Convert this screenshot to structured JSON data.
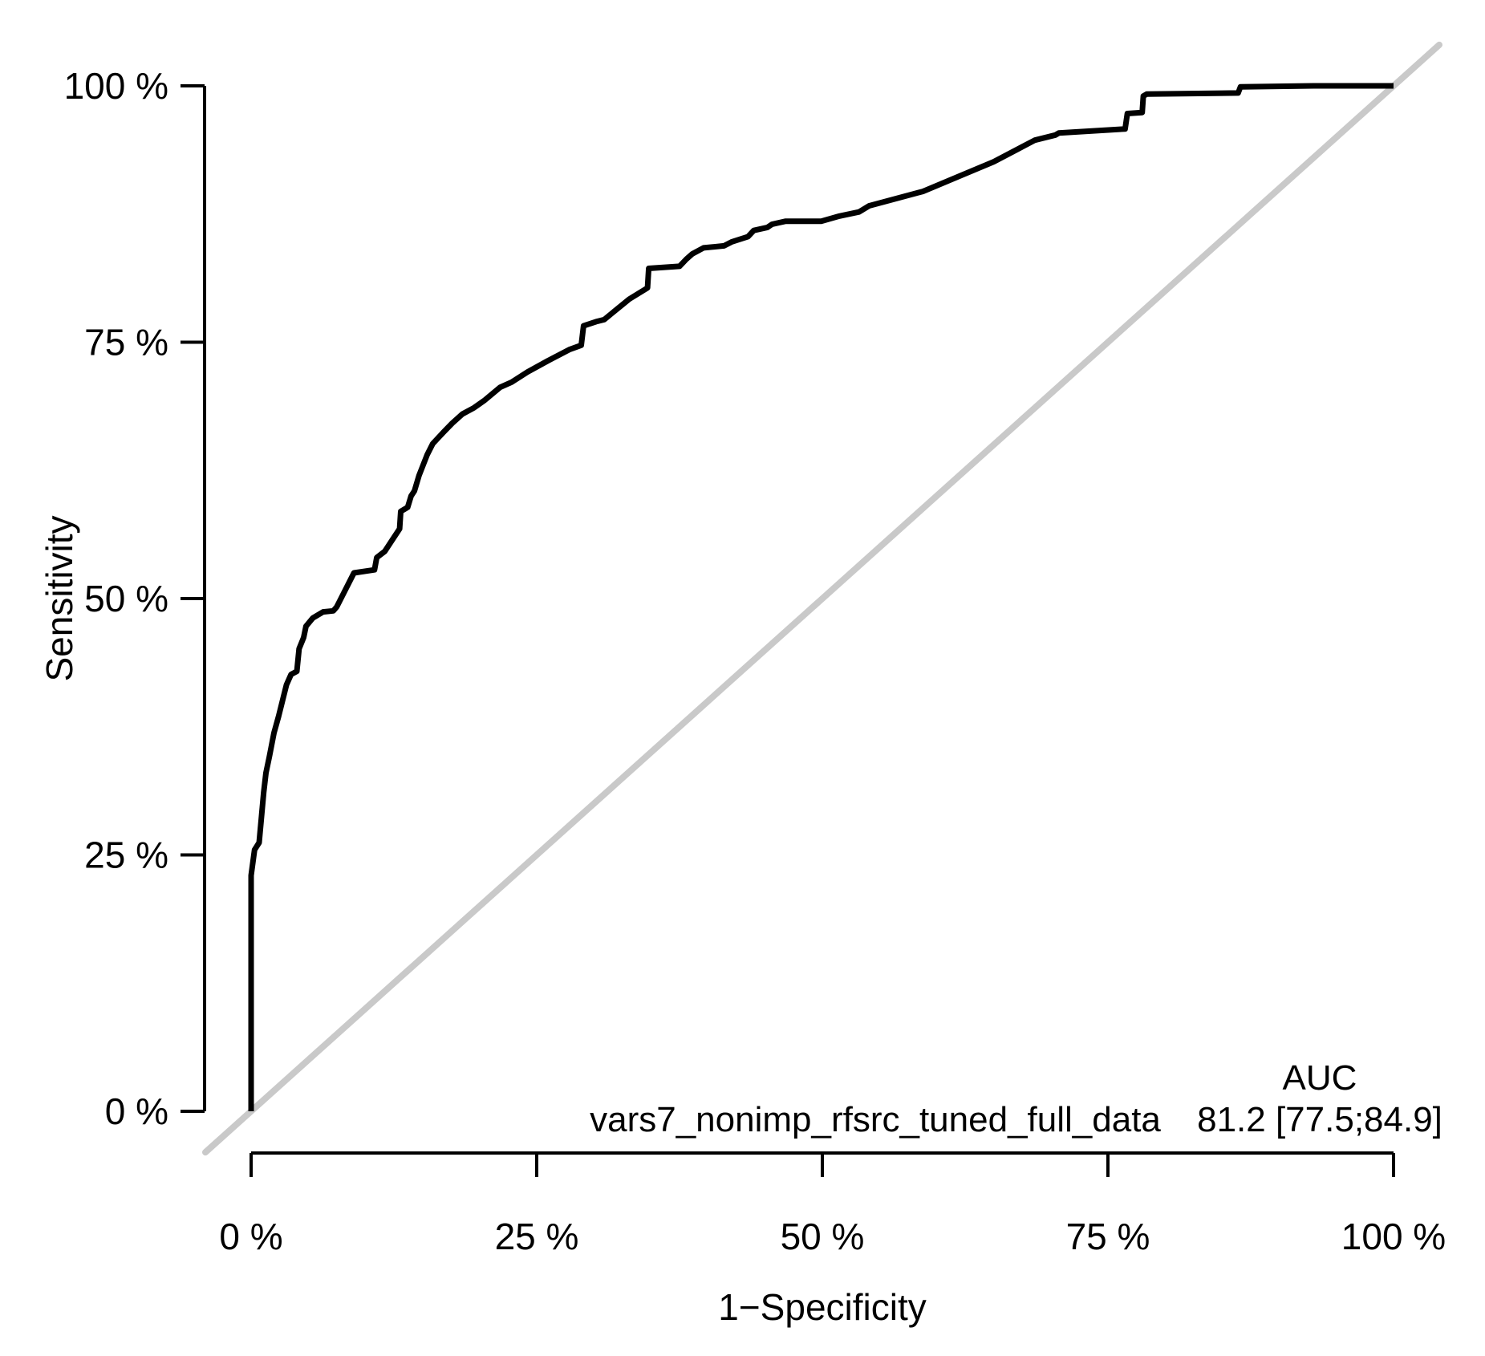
{
  "chart_data": {
    "type": "line",
    "title": "",
    "xlabel": "1−Specificity",
    "ylabel": "Sensitivity",
    "xlim": [
      0,
      100
    ],
    "ylim": [
      0,
      100
    ],
    "grid": false,
    "legend_position": "none",
    "x_tick_labels": [
      "0 %",
      "25 %",
      "50 %",
      "75 %",
      "100 %"
    ],
    "x_tick_values": [
      0,
      25,
      50,
      75,
      100
    ],
    "y_tick_labels": [
      "0 %",
      "25 %",
      "50 %",
      "75 %",
      "100 %"
    ],
    "y_tick_values": [
      0,
      25,
      50,
      75,
      100
    ],
    "annotation": {
      "model_label": "vars7_nonimp_rfsrc_tuned_full_data",
      "auc_header": "AUC",
      "auc_value_text": "81.2 [77.5;84.9]",
      "auc": 81.2,
      "auc_ci_low": 77.5,
      "auc_ci_high": 84.9
    },
    "series": [
      {
        "name": "reference_diagonal",
        "color": "#c9c9c9",
        "stroke_width": 8,
        "points": [
          [
            -4,
            -4
          ],
          [
            104,
            104
          ]
        ]
      },
      {
        "name": "roc_curve",
        "color": "#000000",
        "stroke_width": 7,
        "points": [
          [
            0,
            0
          ],
          [
            0,
            23
          ],
          [
            0.3,
            25.5
          ],
          [
            0.7,
            26.2
          ],
          [
            1.1,
            31.1
          ],
          [
            1.3,
            33
          ],
          [
            1.6,
            34.6
          ],
          [
            2,
            36.9
          ],
          [
            2.4,
            38.5
          ],
          [
            3.1,
            41.6
          ],
          [
            3.5,
            42.6
          ],
          [
            4,
            42.9
          ],
          [
            4.2,
            45.1
          ],
          [
            4.6,
            46.2
          ],
          [
            4.8,
            47.3
          ],
          [
            5.4,
            48.1
          ],
          [
            6.3,
            48.7
          ],
          [
            7.2,
            48.8
          ],
          [
            7.5,
            49.2
          ],
          [
            9,
            52.5
          ],
          [
            10.8,
            52.8
          ],
          [
            11,
            54
          ],
          [
            11.7,
            54.6
          ],
          [
            12.4,
            55.8
          ],
          [
            13,
            56.8
          ],
          [
            13.1,
            58.5
          ],
          [
            13.7,
            58.9
          ],
          [
            14,
            60
          ],
          [
            14.3,
            60.5
          ],
          [
            14.7,
            62
          ],
          [
            15.4,
            64
          ],
          [
            15.9,
            65.1
          ],
          [
            16.4,
            65.7
          ],
          [
            16.9,
            66.3
          ],
          [
            17.6,
            67.1
          ],
          [
            18.5,
            68
          ],
          [
            19.5,
            68.6
          ],
          [
            20.4,
            69.3
          ],
          [
            21.8,
            70.6
          ],
          [
            22.8,
            71.1
          ],
          [
            24.2,
            72.1
          ],
          [
            26,
            73.2
          ],
          [
            27.9,
            74.3
          ],
          [
            28.9,
            74.7
          ],
          [
            29.1,
            76.6
          ],
          [
            30.2,
            77
          ],
          [
            30.9,
            77.2
          ],
          [
            33.1,
            79.2
          ],
          [
            34.7,
            80.3
          ],
          [
            34.8,
            82.2
          ],
          [
            37.5,
            82.4
          ],
          [
            38.1,
            83.1
          ],
          [
            38.6,
            83.6
          ],
          [
            39.6,
            84.2
          ],
          [
            41.4,
            84.4
          ],
          [
            42.1,
            84.8
          ],
          [
            43.5,
            85.3
          ],
          [
            44,
            85.9
          ],
          [
            45.2,
            86.2
          ],
          [
            45.6,
            86.5
          ],
          [
            46.8,
            86.8
          ],
          [
            49.9,
            86.8
          ],
          [
            51.5,
            87.3
          ],
          [
            53.2,
            87.7
          ],
          [
            54.1,
            88.3
          ],
          [
            58.8,
            89.7
          ],
          [
            62,
            91.2
          ],
          [
            65,
            92.6
          ],
          [
            68.6,
            94.7
          ],
          [
            70.4,
            95.2
          ],
          [
            70.7,
            95.4
          ],
          [
            76.5,
            95.8
          ],
          [
            76.7,
            97.3
          ],
          [
            78,
            97.4
          ],
          [
            78.1,
            99
          ],
          [
            78.4,
            99.2
          ],
          [
            86.4,
            99.3
          ],
          [
            86.6,
            99.9
          ],
          [
            93,
            100
          ],
          [
            100,
            100
          ]
        ]
      }
    ],
    "axis_color": "#000000"
  }
}
